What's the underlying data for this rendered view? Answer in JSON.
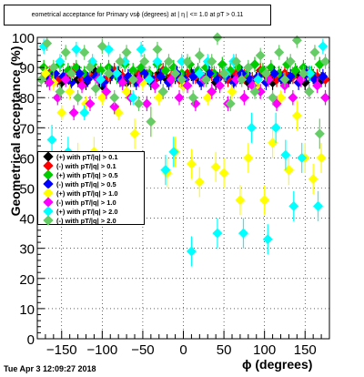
{
  "chart_data": {
    "type": "scatter",
    "title": "eometrical acceptance for Primary vsϕ (degrees) at | η | <= 1.0 at pT > 0.11",
    "xlabel": "ϕ (degrees)",
    "ylabel": "Geometrical acceptance (%)",
    "xlim": [
      -180,
      180
    ],
    "ylim": [
      0,
      100
    ],
    "x_ticks": [
      -150,
      -100,
      -50,
      0,
      50,
      100,
      150
    ],
    "y_ticks": [
      0,
      10,
      20,
      30,
      40,
      50,
      60,
      70,
      80,
      90,
      100
    ],
    "grid": true,
    "legend_position": "middle-left",
    "timestamp": "Tue Apr  3 12:09:27 2018",
    "series": [
      {
        "name": "(+) with pT/|q| > 0.1",
        "color": "#000000",
        "values": [
          [
            -170,
            87
          ],
          [
            -160,
            88
          ],
          [
            -150,
            85
          ],
          [
            -140,
            88
          ],
          [
            -130,
            86
          ],
          [
            -120,
            85
          ],
          [
            -110,
            89
          ],
          [
            -100,
            84
          ],
          [
            -90,
            87
          ],
          [
            -80,
            88
          ],
          [
            -70,
            85
          ],
          [
            -60,
            86
          ],
          [
            -50,
            87
          ],
          [
            -40,
            85
          ],
          [
            -30,
            88
          ],
          [
            -20,
            86
          ],
          [
            -10,
            87
          ],
          [
            0,
            84
          ],
          [
            10,
            88
          ],
          [
            20,
            86
          ],
          [
            30,
            87
          ],
          [
            40,
            85
          ],
          [
            50,
            88
          ],
          [
            60,
            86
          ],
          [
            70,
            87
          ],
          [
            80,
            85
          ],
          [
            90,
            86
          ],
          [
            100,
            88
          ],
          [
            110,
            85
          ],
          [
            120,
            87
          ],
          [
            130,
            86
          ],
          [
            140,
            88
          ],
          [
            150,
            85
          ],
          [
            160,
            87
          ],
          [
            170,
            86
          ]
        ]
      },
      {
        "name": "(-) with pT/|q| > 0.1",
        "color": "#ff0000",
        "values": [
          [
            -165,
            88
          ],
          [
            -155,
            86
          ],
          [
            -145,
            87
          ],
          [
            -135,
            89
          ],
          [
            -125,
            86
          ],
          [
            -115,
            87
          ],
          [
            -105,
            88
          ],
          [
            -95,
            86
          ],
          [
            -85,
            89
          ],
          [
            -75,
            87
          ],
          [
            -65,
            86
          ],
          [
            -55,
            88
          ],
          [
            -45,
            87
          ],
          [
            -35,
            86
          ],
          [
            -25,
            89
          ],
          [
            -15,
            87
          ],
          [
            -5,
            86
          ],
          [
            5,
            88
          ],
          [
            15,
            87
          ],
          [
            25,
            86
          ],
          [
            35,
            88
          ],
          [
            45,
            87
          ],
          [
            55,
            86
          ],
          [
            65,
            88
          ],
          [
            75,
            87
          ],
          [
            85,
            86
          ],
          [
            95,
            89
          ],
          [
            105,
            87
          ],
          [
            115,
            86
          ],
          [
            125,
            88
          ],
          [
            135,
            87
          ],
          [
            145,
            86
          ],
          [
            155,
            88
          ],
          [
            165,
            87
          ],
          [
            175,
            86
          ]
        ]
      },
      {
        "name": "(+) with pT/|q| > 0.5",
        "color": "#00cc00",
        "values": [
          [
            -172,
            90
          ],
          [
            -162,
            88
          ],
          [
            -152,
            91
          ],
          [
            -142,
            89
          ],
          [
            -132,
            90
          ],
          [
            -122,
            88
          ],
          [
            -112,
            91
          ],
          [
            -102,
            89
          ],
          [
            -92,
            90
          ],
          [
            -82,
            87
          ],
          [
            -72,
            91
          ],
          [
            -62,
            89
          ],
          [
            -52,
            90
          ],
          [
            -42,
            88
          ],
          [
            -32,
            91
          ],
          [
            -22,
            89
          ],
          [
            -12,
            90
          ],
          [
            -2,
            88
          ],
          [
            8,
            91
          ],
          [
            18,
            89
          ],
          [
            28,
            90
          ],
          [
            38,
            88
          ],
          [
            48,
            91
          ],
          [
            58,
            89
          ],
          [
            68,
            90
          ],
          [
            78,
            88
          ],
          [
            88,
            91
          ],
          [
            98,
            89
          ],
          [
            108,
            90
          ],
          [
            118,
            88
          ],
          [
            128,
            91
          ],
          [
            138,
            89
          ],
          [
            148,
            90
          ],
          [
            158,
            88
          ],
          [
            168,
            91
          ]
        ]
      },
      {
        "name": "(-) with pT/|q| > 0.5",
        "color": "#0000ff",
        "values": [
          [
            -168,
            86
          ],
          [
            -158,
            88
          ],
          [
            -148,
            87
          ],
          [
            -138,
            85
          ],
          [
            -128,
            88
          ],
          [
            -118,
            86
          ],
          [
            -108,
            87
          ],
          [
            -98,
            85
          ],
          [
            -88,
            88
          ],
          [
            -78,
            86
          ],
          [
            -68,
            87
          ],
          [
            -58,
            85
          ],
          [
            -48,
            88
          ],
          [
            -38,
            86
          ],
          [
            -28,
            87
          ],
          [
            -18,
            85
          ],
          [
            -8,
            88
          ],
          [
            2,
            86
          ],
          [
            12,
            87
          ],
          [
            22,
            85
          ],
          [
            32,
            88
          ],
          [
            42,
            86
          ],
          [
            52,
            87
          ],
          [
            62,
            85
          ],
          [
            72,
            88
          ],
          [
            82,
            86
          ],
          [
            92,
            87
          ],
          [
            102,
            85
          ],
          [
            112,
            88
          ],
          [
            122,
            86
          ],
          [
            132,
            87
          ],
          [
            142,
            85
          ],
          [
            152,
            88
          ],
          [
            162,
            86
          ],
          [
            172,
            87
          ]
        ]
      },
      {
        "name": "(+) with pT/|q| > 1.0",
        "color": "#ffff00",
        "values": [
          [
            -170,
            88
          ],
          [
            -160,
            85
          ],
          [
            -150,
            75
          ],
          [
            -140,
            82
          ],
          [
            -130,
            60
          ],
          [
            -120,
            78
          ],
          [
            -110,
            62
          ],
          [
            -100,
            80
          ],
          [
            -90,
            55
          ],
          [
            -80,
            75
          ],
          [
            -70,
            82
          ],
          [
            -60,
            68
          ],
          [
            -50,
            85
          ],
          [
            -40,
            72
          ],
          [
            -30,
            80
          ],
          [
            -20,
            55
          ],
          [
            -10,
            62
          ],
          [
            0,
            84
          ],
          [
            10,
            58
          ],
          [
            20,
            52
          ],
          [
            30,
            80
          ],
          [
            40,
            57
          ],
          [
            50,
            55
          ],
          [
            60,
            82
          ],
          [
            70,
            46
          ],
          [
            80,
            60
          ],
          [
            90,
            84
          ],
          [
            100,
            46
          ],
          [
            110,
            65
          ],
          [
            120,
            80
          ],
          [
            130,
            56
          ],
          [
            140,
            74
          ],
          [
            150,
            60
          ],
          [
            160,
            53
          ],
          [
            170,
            60
          ]
        ]
      },
      {
        "name": "(-) with pT/|q| > 1.0",
        "color": "#ff00ff",
        "values": [
          [
            -165,
            85
          ],
          [
            -155,
            80
          ],
          [
            -145,
            86
          ],
          [
            -135,
            75
          ],
          [
            -125,
            84
          ],
          [
            -115,
            78
          ],
          [
            -105,
            86
          ],
          [
            -95,
            82
          ],
          [
            -85,
            77
          ],
          [
            -75,
            85
          ],
          [
            -65,
            80
          ],
          [
            -55,
            86
          ],
          [
            -45,
            78
          ],
          [
            -35,
            84
          ],
          [
            -25,
            82
          ],
          [
            -15,
            86
          ],
          [
            -5,
            80
          ],
          [
            5,
            84
          ],
          [
            15,
            78
          ],
          [
            25,
            86
          ],
          [
            35,
            82
          ],
          [
            45,
            84
          ],
          [
            55,
            78
          ],
          [
            65,
            86
          ],
          [
            75,
            80
          ],
          [
            85,
            84
          ],
          [
            95,
            82
          ],
          [
            105,
            86
          ],
          [
            115,
            78
          ],
          [
            125,
            84
          ],
          [
            135,
            80
          ],
          [
            145,
            86
          ],
          [
            155,
            82
          ],
          [
            165,
            84
          ],
          [
            175,
            80
          ]
        ]
      },
      {
        "name": "(+) with pT/|q| > 2.0",
        "color": "#00ffff",
        "values": [
          [
            -172,
            97
          ],
          [
            -162,
            66
          ],
          [
            -152,
            92
          ],
          [
            -142,
            62
          ],
          [
            -132,
            96
          ],
          [
            -122,
            75
          ],
          [
            -112,
            92
          ],
          [
            -102,
            86
          ],
          [
            -92,
            96
          ],
          [
            -82,
            88
          ],
          [
            -72,
            92
          ],
          [
            -62,
            80
          ],
          [
            -52,
            96
          ],
          [
            -42,
            86
          ],
          [
            -32,
            92
          ],
          [
            -22,
            56
          ],
          [
            -12,
            62
          ],
          [
            -2,
            92
          ],
          [
            10,
            29
          ],
          [
            20,
            88
          ],
          [
            30,
            92
          ],
          [
            42,
            35
          ],
          [
            52,
            88
          ],
          [
            62,
            92
          ],
          [
            74,
            35
          ],
          [
            84,
            70
          ],
          [
            92,
            86
          ],
          [
            104,
            33
          ],
          [
            114,
            70
          ],
          [
            126,
            61
          ],
          [
            136,
            44
          ],
          [
            146,
            60
          ],
          [
            156,
            88
          ],
          [
            166,
            44
          ],
          [
            172,
            97
          ]
        ]
      },
      {
        "name": "(-) with pT/|q| > 2.0",
        "color": "#66cc66",
        "values": [
          [
            -175,
            86
          ],
          [
            -168,
            98
          ],
          [
            -160,
            90
          ],
          [
            -152,
            82
          ],
          [
            -145,
            95
          ],
          [
            -138,
            88
          ],
          [
            -130,
            80
          ],
          [
            -122,
            95
          ],
          [
            -115,
            90
          ],
          [
            -108,
            83
          ],
          [
            -100,
            97
          ],
          [
            -92,
            88
          ],
          [
            -85,
            80
          ],
          [
            -78,
            92
          ],
          [
            -70,
            95
          ],
          [
            -62,
            86
          ],
          [
            -55,
            78
          ],
          [
            -48,
            92
          ],
          [
            -40,
            72
          ],
          [
            -32,
            96
          ],
          [
            -25,
            82
          ],
          [
            -18,
            92
          ],
          [
            -10,
            88
          ],
          [
            -2,
            86
          ],
          [
            5,
            92
          ],
          [
            12,
            80
          ],
          [
            20,
            94
          ],
          [
            28,
            86
          ],
          [
            35,
            92
          ],
          [
            42,
            100
          ],
          [
            50,
            88
          ],
          [
            58,
            78
          ],
          [
            65,
            92
          ],
          [
            72,
            86
          ],
          [
            80,
            90
          ],
          [
            88,
            82
          ],
          [
            95,
            94
          ],
          [
            102,
            88
          ],
          [
            110,
            80
          ],
          [
            118,
            95
          ],
          [
            125,
            86
          ],
          [
            132,
            92
          ],
          [
            140,
            99
          ],
          [
            148,
            88
          ],
          [
            155,
            82
          ],
          [
            162,
            95
          ],
          [
            168,
            68
          ],
          [
            175,
            92
          ]
        ]
      }
    ]
  }
}
